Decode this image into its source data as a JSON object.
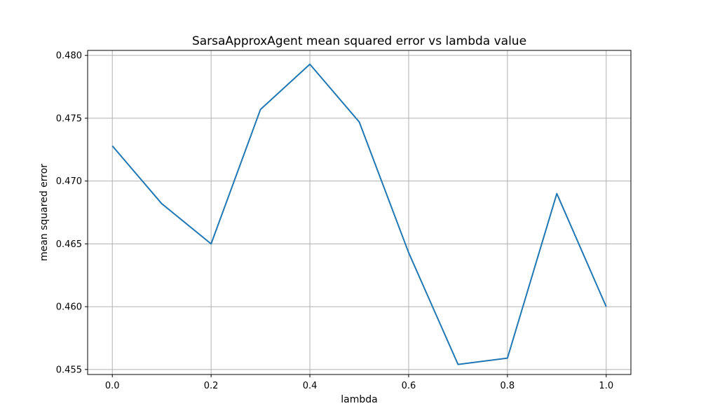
{
  "chart_data": {
    "type": "line",
    "title": "SarsaApproxAgent mean squared error vs lambda value",
    "xlabel": "lambda",
    "ylabel": "mean squared error",
    "xlim": [
      -0.05,
      1.05
    ],
    "ylim": [
      0.4546,
      0.4804
    ],
    "grid": true,
    "xticks": [
      "0.0",
      "0.2",
      "0.4",
      "0.6",
      "0.8",
      "1.0"
    ],
    "yticks": [
      "0.455",
      "0.460",
      "0.465",
      "0.470",
      "0.475",
      "0.480"
    ],
    "series": [
      {
        "color": "#1f77b4",
        "x": [
          0.0,
          0.1,
          0.2,
          0.3,
          0.4,
          0.5,
          0.6,
          0.7,
          0.8,
          0.9,
          1.0
        ],
        "y": [
          0.4728,
          0.4682,
          0.465,
          0.4757,
          0.4793,
          0.4747,
          0.4643,
          0.4554,
          0.4559,
          0.469,
          0.46
        ]
      }
    ]
  }
}
